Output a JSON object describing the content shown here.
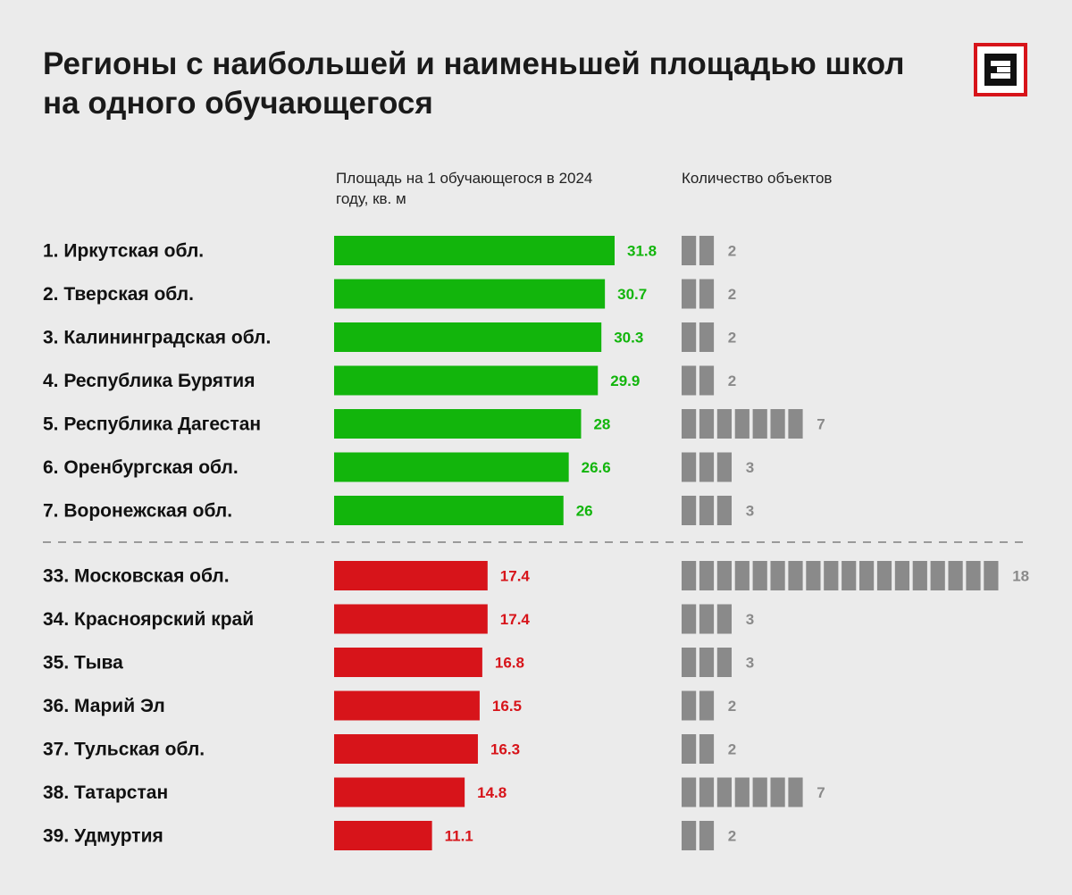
{
  "chart_data": {
    "type": "bar",
    "title": "Регионы с наибольшей и наименьшей площадью школ на одного обучающегося",
    "xlabel": "Площадь на 1 обучающегося в 2024 году, кв. м",
    "count_label": "Количество объектов",
    "xlim": [
      0,
      31.8
    ],
    "colors": {
      "top": "#12b50c",
      "bottom": "#d7141a",
      "count": "#8a8a8a"
    },
    "groups": [
      {
        "name": "top",
        "rows": [
          {
            "label": "1. Иркутская обл.",
            "value": 31.8,
            "value_label": "31.8",
            "count": 2
          },
          {
            "label": "2. Тверская обл.",
            "value": 30.7,
            "value_label": "30.7",
            "count": 2
          },
          {
            "label": "3. Калининградская обл.",
            "value": 30.3,
            "value_label": "30.3",
            "count": 2
          },
          {
            "label": "4. Республика Бурятия",
            "value": 29.9,
            "value_label": "29.9",
            "count": 2
          },
          {
            "label": "5. Республика Дагестан",
            "value": 28,
            "value_label": "28",
            "count": 7
          },
          {
            "label": "6. Оренбургская обл.",
            "value": 26.6,
            "value_label": "26.6",
            "count": 3
          },
          {
            "label": "7. Воронежская обл.",
            "value": 26,
            "value_label": "26",
            "count": 3
          }
        ]
      },
      {
        "name": "bottom",
        "rows": [
          {
            "label": "33. Московская обл.",
            "value": 17.4,
            "value_label": "17.4",
            "count": 18
          },
          {
            "label": "34. Красноярский край",
            "value": 17.4,
            "value_label": "17.4",
            "count": 3
          },
          {
            "label": "35. Тыва",
            "value": 16.8,
            "value_label": "16.8",
            "count": 3
          },
          {
            "label": "36. Марий Эл",
            "value": 16.5,
            "value_label": "16.5",
            "count": 2
          },
          {
            "label": "37. Тульская обл.",
            "value": 16.3,
            "value_label": "16.3",
            "count": 2
          },
          {
            "label": "38. Татарстан",
            "value": 14.8,
            "value_label": "14.8",
            "count": 7
          },
          {
            "label": "39. Удмуртия",
            "value": 11.1,
            "value_label": "11.1",
            "count": 2
          }
        ]
      }
    ]
  },
  "logo": {
    "icon": "epsilon-logo-icon",
    "border_color": "#d7141a"
  }
}
